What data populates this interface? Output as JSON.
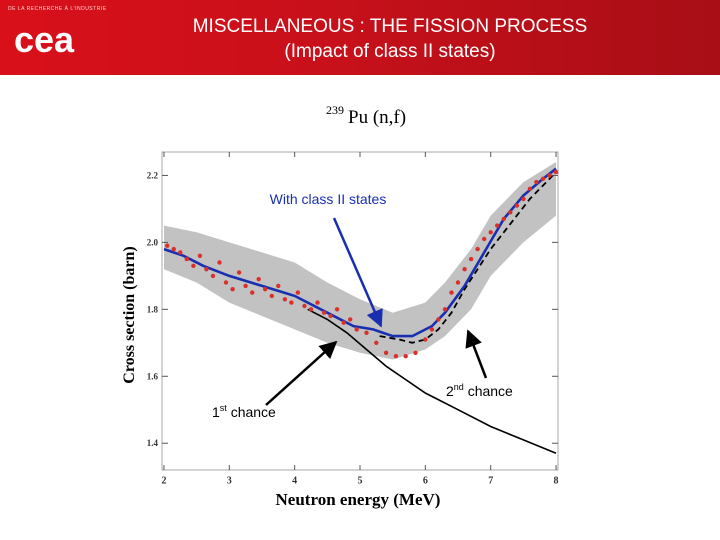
{
  "header": {
    "logo_tagline": "DE LA RECHERCHE À L'INDUSTRIE",
    "logo_text": "cea",
    "title_line1": "MISCELLANEOUS : THE FISSION PROCESS",
    "title_line2": "(Impact of class II states)"
  },
  "colors": {
    "banner": "#d0101a",
    "class2_curve": "#1a2fb0",
    "arrow": "#1a2fb0",
    "data_points": "#d9302a",
    "uncertainty_band": "#b7b7b7"
  },
  "chart_data": {
    "type": "line",
    "title_sup": "239",
    "title_main": "Pu (n,f)",
    "xlabel": "Neutron energy (MeV)",
    "ylabel": "Cross section (barn)",
    "xlim": [
      1.97,
      8.03
    ],
    "ylim": [
      1.32,
      2.27
    ],
    "x_ticks": [
      "2",
      "3",
      "4",
      "5",
      "6",
      "7",
      "8"
    ],
    "y_ticks": [
      "1.4",
      "1.6",
      "1.8",
      "2.0",
      "2.2"
    ],
    "annotations": {
      "class2": "With class II states",
      "first_chance_pre": "1",
      "first_chance_sup": "st",
      "first_chance_post": " chance",
      "second_chance_pre": "2",
      "second_chance_sup": "nd",
      "second_chance_post": " chance"
    },
    "series": [
      {
        "name": "With class II states",
        "style": "solid-blue",
        "x": [
          2.0,
          2.3,
          2.6,
          3.0,
          3.5,
          4.0,
          4.5,
          4.9,
          5.2,
          5.5,
          5.8,
          6.1,
          6.3,
          6.6,
          6.9,
          7.2,
          7.5,
          7.8,
          8.0
        ],
        "y": [
          1.98,
          1.96,
          1.93,
          1.9,
          1.87,
          1.84,
          1.79,
          1.75,
          1.74,
          1.72,
          1.72,
          1.75,
          1.79,
          1.87,
          1.97,
          2.07,
          2.14,
          2.19,
          2.22
        ]
      },
      {
        "name": "1st chance",
        "style": "solid-black",
        "x": [
          4.2,
          4.5,
          4.8,
          5.1,
          5.4,
          5.7,
          6.0,
          6.5,
          7.0,
          7.5,
          8.0
        ],
        "y": [
          1.8,
          1.77,
          1.73,
          1.68,
          1.63,
          1.59,
          1.55,
          1.5,
          1.45,
          1.41,
          1.37
        ]
      },
      {
        "name": "2nd chance",
        "style": "dashed-black",
        "x": [
          5.3,
          5.6,
          5.8,
          6.0,
          6.2,
          6.4,
          6.6,
          6.8,
          7.0,
          7.2,
          7.4,
          7.6,
          7.8,
          8.0
        ],
        "y": [
          1.72,
          1.71,
          1.7,
          1.71,
          1.74,
          1.79,
          1.86,
          1.92,
          1.98,
          2.03,
          2.08,
          2.13,
          2.17,
          2.21
        ]
      },
      {
        "name": "Uncertainty band (upper)",
        "style": "band-upper",
        "x": [
          2.0,
          2.5,
          3.0,
          3.5,
          4.0,
          4.5,
          5.0,
          5.5,
          6.0,
          6.3,
          6.7,
          7.0,
          7.5,
          8.0
        ],
        "y": [
          2.05,
          2.03,
          2.0,
          1.97,
          1.94,
          1.88,
          1.83,
          1.79,
          1.82,
          1.88,
          1.98,
          2.08,
          2.18,
          2.24
        ]
      },
      {
        "name": "Uncertainty band (lower)",
        "style": "band-lower",
        "x": [
          2.0,
          2.5,
          3.0,
          3.5,
          4.0,
          4.5,
          5.0,
          5.5,
          6.0,
          6.3,
          6.7,
          7.0,
          7.5,
          8.0
        ],
        "y": [
          1.92,
          1.88,
          1.82,
          1.78,
          1.74,
          1.7,
          1.67,
          1.65,
          1.68,
          1.72,
          1.8,
          1.9,
          2.0,
          2.08
        ]
      },
      {
        "name": "Measured data",
        "style": "points-red",
        "x": [
          2.05,
          2.15,
          2.25,
          2.35,
          2.45,
          2.55,
          2.65,
          2.75,
          2.85,
          2.95,
          3.05,
          3.15,
          3.25,
          3.35,
          3.45,
          3.55,
          3.65,
          3.75,
          3.85,
          3.95,
          4.05,
          4.15,
          4.25,
          4.35,
          4.45,
          4.55,
          4.65,
          4.75,
          4.85,
          4.95,
          5.1,
          5.25,
          5.4,
          5.55,
          5.7,
          5.85,
          6.0,
          6.1,
          6.2,
          6.3,
          6.4,
          6.5,
          6.6,
          6.7,
          6.8,
          6.9,
          7.0,
          7.1,
          7.2,
          7.3,
          7.4,
          7.5,
          7.6,
          7.7,
          7.8,
          7.9,
          8.0
        ],
        "y": [
          1.99,
          1.98,
          1.97,
          1.95,
          1.93,
          1.96,
          1.92,
          1.9,
          1.94,
          1.88,
          1.86,
          1.91,
          1.87,
          1.85,
          1.89,
          1.86,
          1.84,
          1.87,
          1.83,
          1.82,
          1.85,
          1.81,
          1.8,
          1.82,
          1.79,
          1.78,
          1.8,
          1.76,
          1.77,
          1.74,
          1.73,
          1.7,
          1.67,
          1.66,
          1.66,
          1.67,
          1.71,
          1.74,
          1.77,
          1.8,
          1.85,
          1.88,
          1.92,
          1.95,
          1.98,
          2.01,
          2.03,
          2.05,
          2.07,
          2.09,
          2.11,
          2.13,
          2.16,
          2.18,
          2.19,
          2.2,
          2.21
        ]
      }
    ]
  }
}
